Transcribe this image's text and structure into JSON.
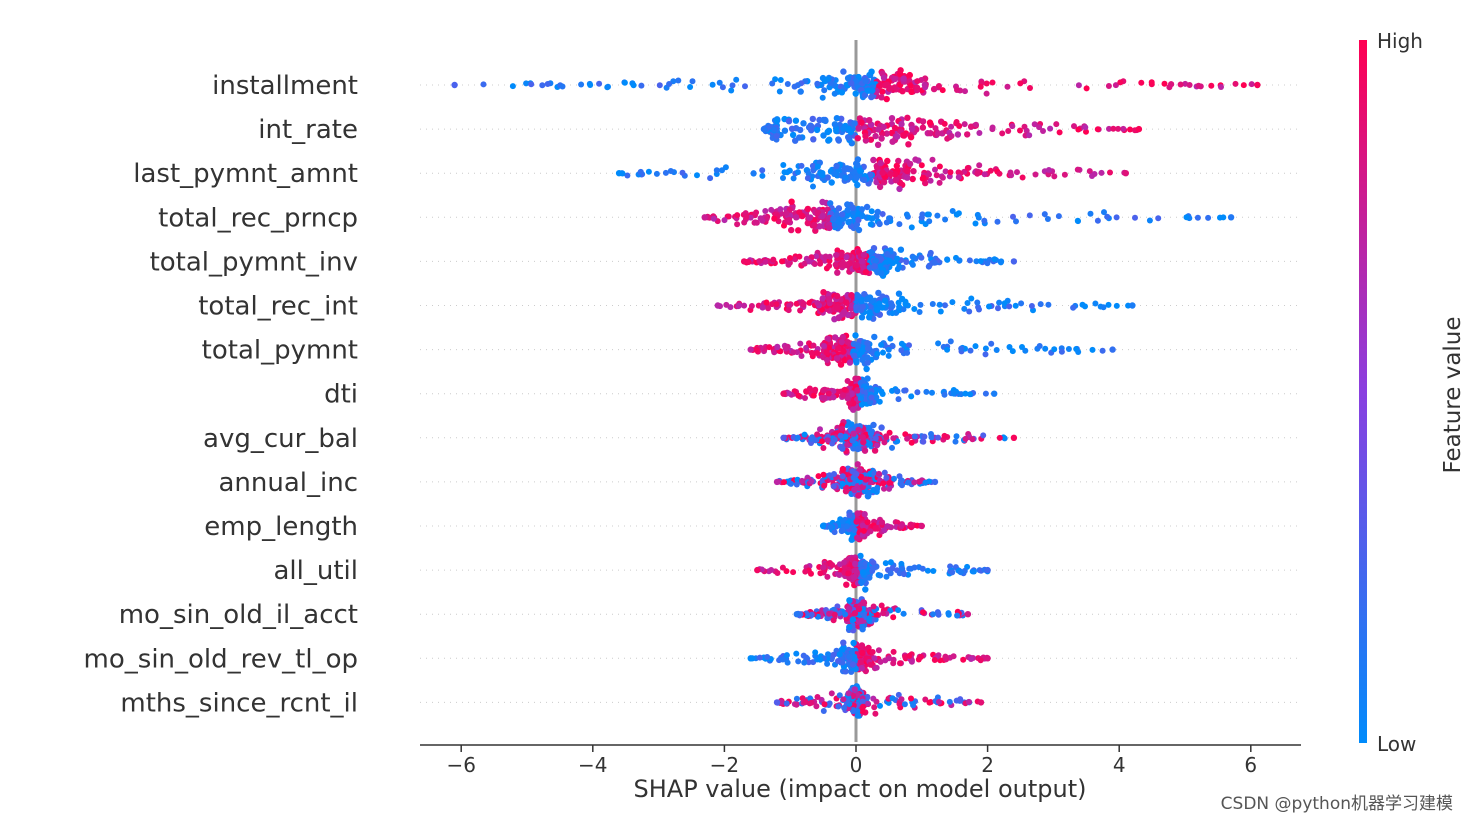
{
  "chart_data": {
    "type": "scatter",
    "subtype": "shap_beeswarm",
    "xlabel": "SHAP value (impact on model output)",
    "xlim": [
      -6.6,
      6.7
    ],
    "xticks": [
      -6,
      -4,
      -2,
      0,
      2,
      4,
      6
    ],
    "xtick_labels": [
      "−6",
      "−4",
      "−2",
      "0",
      "2",
      "4",
      "6"
    ],
    "colorbar": {
      "title": "Feature value",
      "high_label": "High",
      "low_label": "Low",
      "high_color": "#ff0052",
      "low_color": "#008bfb"
    },
    "features": [
      {
        "name": "installment",
        "min": -6.1,
        "max": 6.1,
        "core": [
          -0.3,
          0.9
        ],
        "low_side": "left"
      },
      {
        "name": "int_rate",
        "min": -1.4,
        "max": 4.3,
        "core": [
          -1.2,
          1.2
        ],
        "low_side": "left"
      },
      {
        "name": "last_pymnt_amnt",
        "min": -3.6,
        "max": 4.1,
        "core": [
          -0.5,
          1.0
        ],
        "low_side": "left"
      },
      {
        "name": "total_rec_prncp",
        "min": -2.3,
        "max": 5.7,
        "core": [
          -1.0,
          0.2
        ],
        "low_side": "right"
      },
      {
        "name": "total_pymnt_inv",
        "min": -1.7,
        "max": 2.4,
        "core": [
          -0.2,
          0.6
        ],
        "low_side": "right"
      },
      {
        "name": "total_rec_int",
        "min": -2.1,
        "max": 4.2,
        "core": [
          -0.5,
          0.5
        ],
        "low_side": "right"
      },
      {
        "name": "total_pymnt",
        "min": -1.6,
        "max": 3.9,
        "core": [
          -0.4,
          0.3
        ],
        "low_side": "right"
      },
      {
        "name": "dti",
        "min": -1.1,
        "max": 2.1,
        "core": [
          -0.1,
          0.2
        ],
        "low_side": "right"
      },
      {
        "name": "avg_cur_bal",
        "min": -1.1,
        "max": 2.4,
        "core": [
          -0.2,
          0.3
        ],
        "low_side": "center"
      },
      {
        "name": "annual_inc",
        "min": -1.2,
        "max": 1.2,
        "core": [
          -0.2,
          0.3
        ],
        "low_side": "center"
      },
      {
        "name": "emp_length",
        "min": -0.5,
        "max": 1.0,
        "core": [
          -0.1,
          0.1
        ],
        "low_side": "left"
      },
      {
        "name": "all_util",
        "min": -1.5,
        "max": 2.0,
        "core": [
          -0.1,
          0.2
        ],
        "low_side": "right"
      },
      {
        "name": "mo_sin_old_il_acct",
        "min": -0.9,
        "max": 1.7,
        "core": [
          -0.1,
          0.2
        ],
        "low_side": "center"
      },
      {
        "name": "mo_sin_old_rev_tl_op",
        "min": -1.6,
        "max": 2.0,
        "core": [
          -0.2,
          0.2
        ],
        "low_side": "left"
      },
      {
        "name": "mths_since_rcnt_il",
        "min": -1.2,
        "max": 1.9,
        "core": [
          -0.1,
          0.1
        ],
        "low_side": "center"
      }
    ]
  },
  "watermark": "CSDN @python机器学习建模"
}
